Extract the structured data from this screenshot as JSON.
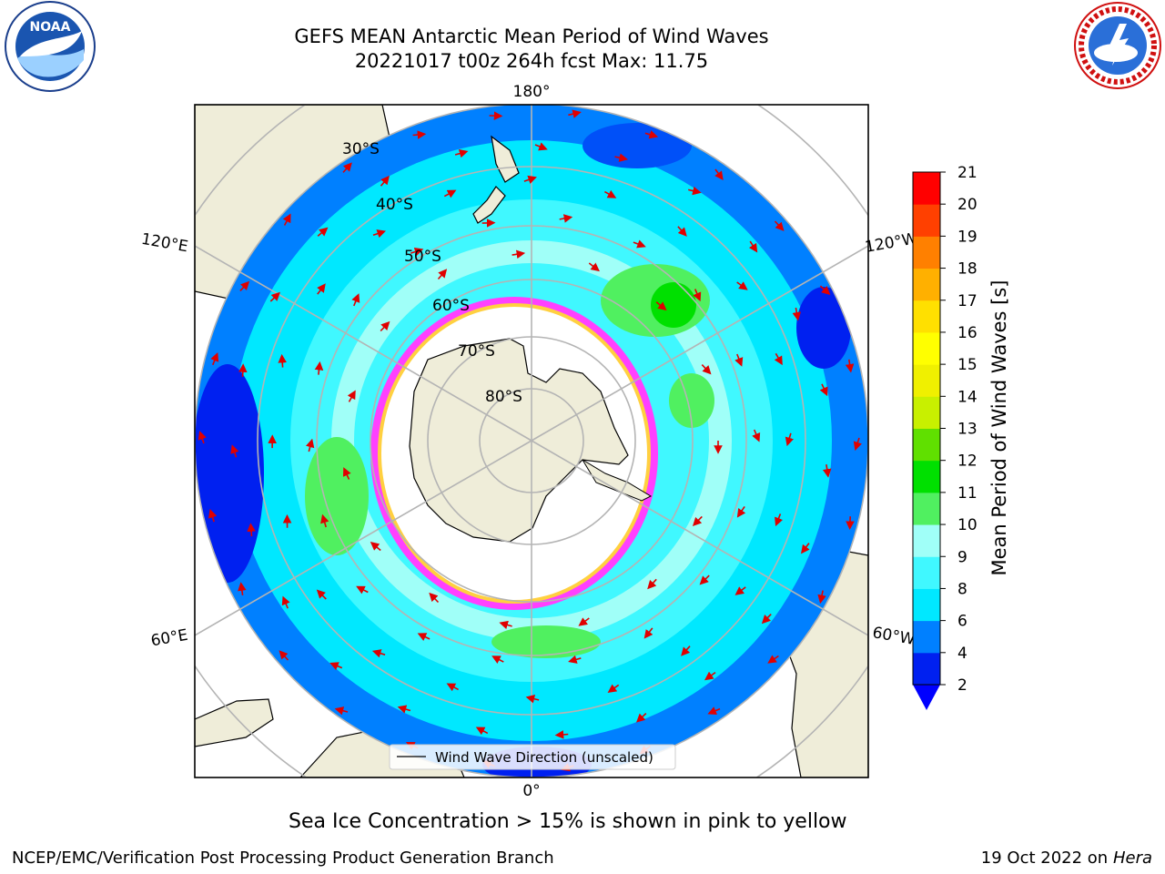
{
  "header": {
    "title_line1": "GEFS MEAN Antarctic Mean Period of Wind Waves",
    "title_line2": "20221017 t00z 264h fcst   Max: 11.75"
  },
  "logos": {
    "left": {
      "name": "noaa-logo",
      "text": "NOAA",
      "ring_text": "NATIONAL OCEANIC AND ATMOSPHERIC ADMINISTRATION · U.S. DEPARTMENT OF COMMERCE"
    },
    "right": {
      "name": "nws-logo",
      "ring_text": "NATIONAL WEATHER SERVICE"
    }
  },
  "map": {
    "projection": "south-polar-stereographic",
    "longitude_labels": {
      "top": "180°",
      "upper_left": "120°E",
      "upper_right": "120°W",
      "lower_left": "60°E",
      "lower_right": "60°W",
      "bottom": "0°"
    },
    "latitude_labels": [
      "30°S",
      "40°S",
      "50°S",
      "60°S",
      "70°S",
      "80°S"
    ],
    "legend_label": "Wind Wave Direction (unscaled)",
    "colors": {
      "land": "#efedd9",
      "ice_edge": "#ff40ff",
      "ice_inner": "#ffd040",
      "arrow": "#e00000",
      "grid": "#b4b4b4"
    }
  },
  "colorbar": {
    "label": "Mean Period of Wind Waves [s]",
    "ticks": [
      "2",
      "4",
      "6",
      "8",
      "9",
      "10",
      "11",
      "12",
      "13",
      "14",
      "15",
      "16",
      "17",
      "18",
      "19",
      "20",
      "21"
    ],
    "colors": [
      "#0020f0",
      "#0080ff",
      "#00e8ff",
      "#40f8ff",
      "#a0fff8",
      "#50f060",
      "#00e000",
      "#60e000",
      "#c8f000",
      "#f0f000",
      "#ffff00",
      "#ffe000",
      "#ffb000",
      "#ff8000",
      "#ff4000",
      "#ff0000"
    ],
    "extend_color": "#0000ff"
  },
  "footer": {
    "note": "Sea Ice Concentration > 15% is shown in pink to yellow",
    "left": "NCEP/EMC/Verification Post Processing Product Generation Branch",
    "right_prefix": "19 Oct 2022 on ",
    "right_host": "Hera"
  }
}
